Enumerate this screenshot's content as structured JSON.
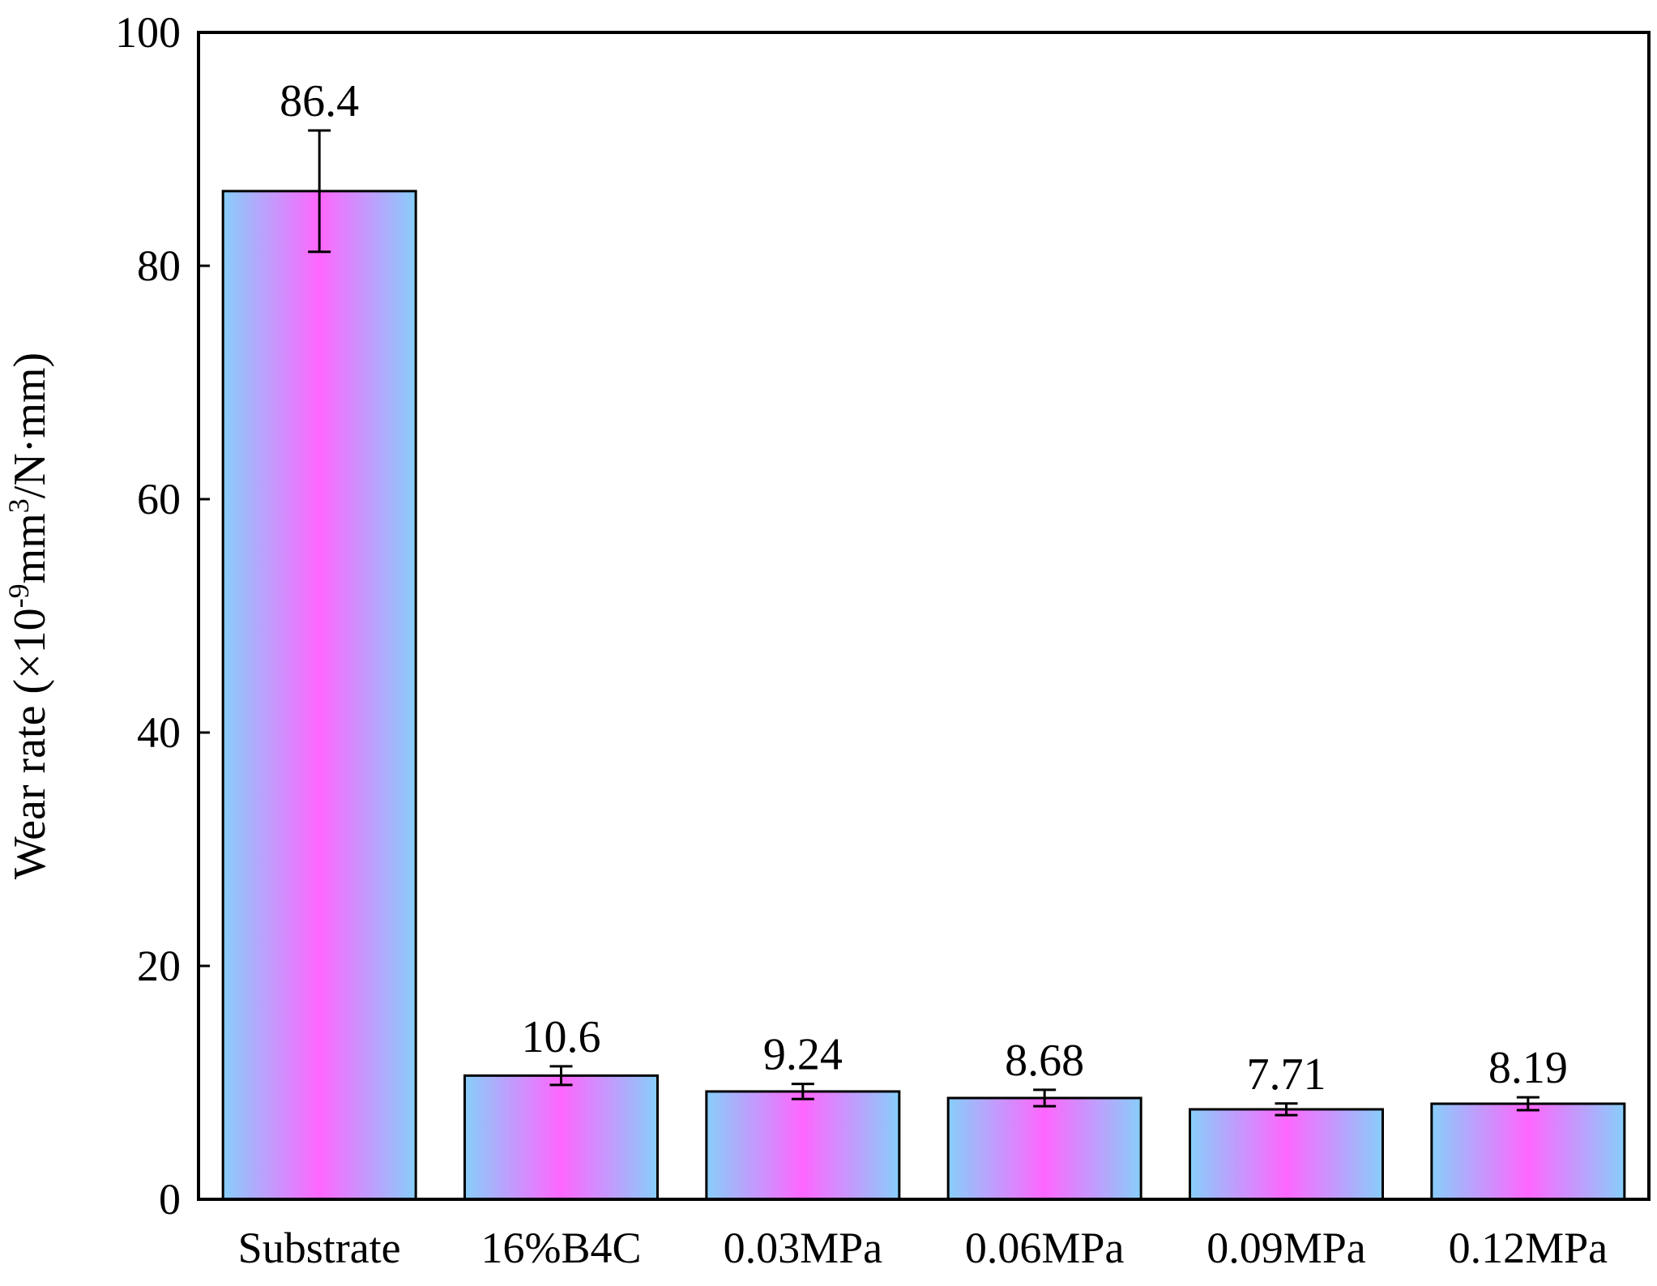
{
  "chart_data": {
    "type": "bar",
    "categories": [
      "Substrate",
      "16%B4C",
      "0.03MPa",
      "0.06MPa",
      "0.09MPa",
      "0.12MPa"
    ],
    "values": [
      86.4,
      10.6,
      9.24,
      8.68,
      7.71,
      8.19
    ],
    "value_labels": [
      "86.4",
      "10.6",
      "9.24",
      "8.68",
      "7.71",
      "8.19"
    ],
    "error": [
      5.2,
      0.8,
      0.65,
      0.7,
      0.5,
      0.55
    ],
    "title": "",
    "xlabel": "",
    "ylabel": "Wear rate (×10",
    "ylabel_exp": "-9",
    "ylabel_mid": "mm",
    "ylabel_exp2": "3",
    "ylabel_tail": "/N·mm)",
    "ylim": [
      0,
      100
    ],
    "yticks": [
      0,
      20,
      40,
      60,
      80,
      100
    ],
    "grid": false,
    "colors": {
      "bar_edge": "#87cefa",
      "bar_center": "#ff66ff",
      "outline": "#000000"
    }
  }
}
